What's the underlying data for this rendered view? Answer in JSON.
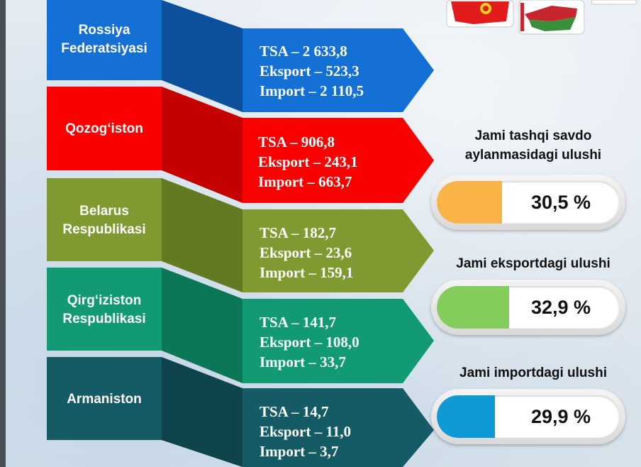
{
  "countries": [
    {
      "name_lines": [
        "Rossiya",
        "Federatsiyasi"
      ],
      "tsa": "TSA – 2 633,8",
      "eksport": "Eksport – 523,3",
      "import": "Import – 2 110,5",
      "color": "#1570d6",
      "dark": "#0c4f9b"
    },
    {
      "name_lines": [
        "Qozog‘iston"
      ],
      "tsa": "TSA – 906,8",
      "eksport": "Eksport – 243,1",
      "import": "Import – 663,7",
      "color": "#fb0000",
      "dark": "#c40000"
    },
    {
      "name_lines": [
        "Belarus",
        "Respublikasi"
      ],
      "tsa": "TSA – 182,7",
      "eksport": "Eksport – 23,6",
      "import": "Import – 159,1",
      "color": "#7f9a30",
      "dark": "#627a22"
    },
    {
      "name_lines": [
        "Qirg‘iziston",
        "Respublikasi"
      ],
      "tsa": "TSA – 141,7",
      "eksport": "Eksport – 108,0",
      "import": "Import – 33,7",
      "color": "#119a73",
      "dark": "#0b7757"
    },
    {
      "name_lines": [
        "Armaniston"
      ],
      "tsa": "TSA – 14,7",
      "eksport": "Eksport – 11,0",
      "import": "Import – 3,7",
      "color": "#155b65",
      "dark": "#0e434b"
    }
  ],
  "shares": [
    {
      "title_lines": [
        "Jami tashqi savdo",
        "aylanmasidagi ulushi"
      ],
      "value": "30,5 %",
      "color": "#f9b347"
    },
    {
      "title_lines": [
        "Jami eksportdagi ulushi"
      ],
      "value": "32,9 %",
      "color": "#84cd5d"
    },
    {
      "title_lines": [
        "Jami importdagi ulushi"
      ],
      "value": "29,9 %",
      "color": "#0e9ad6"
    }
  ]
}
